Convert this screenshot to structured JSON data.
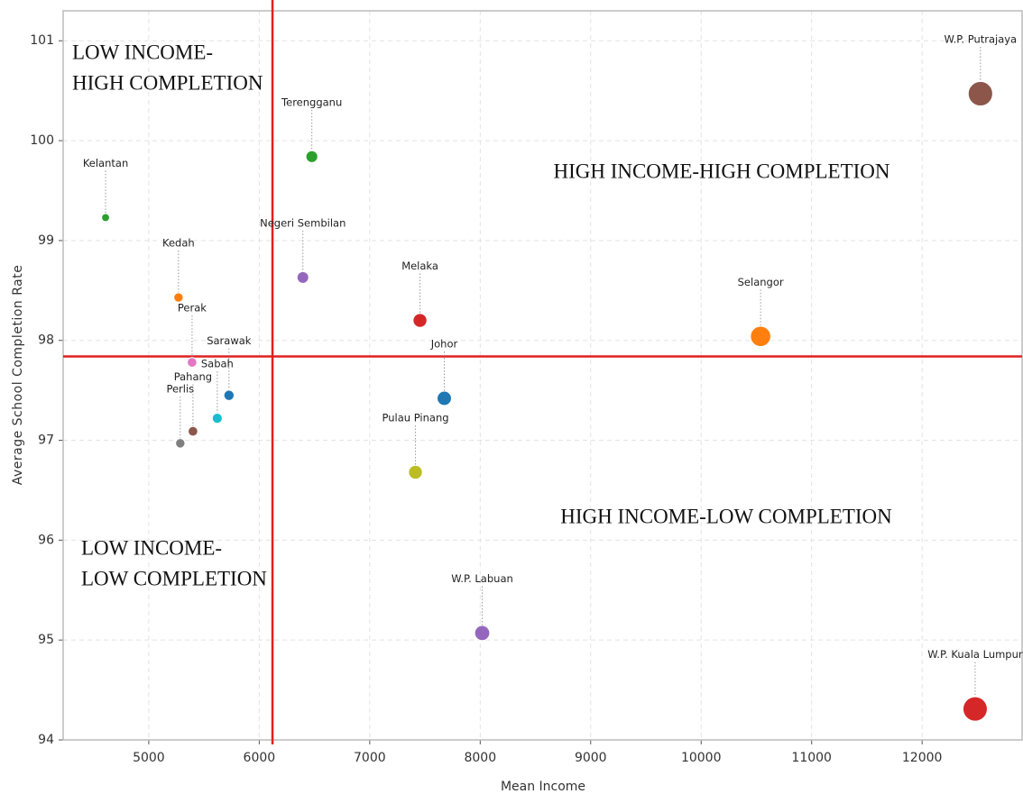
{
  "chart_data": {
    "type": "scatter",
    "x_label": "Mean Income",
    "y_label": "Average School Completion Rate",
    "points": [
      {
        "name": "Kelantan",
        "color": "#2ca02c",
        "x": 4609,
        "y": 99.23
      },
      {
        "name": "Kedah",
        "color": "#ff7f0e",
        "x": 5269,
        "y": 98.43
      },
      {
        "name": "Perak",
        "color": "#e377c2",
        "x": 5392,
        "y": 97.78
      },
      {
        "name": "Sarawak",
        "color": "#1f77b4",
        "x": 5726,
        "y": 97.45
      },
      {
        "name": "Sabah",
        "color": "#17becf",
        "x": 5620,
        "y": 97.22
      },
      {
        "name": "Pahang",
        "color": "#8c564b",
        "x": 5400,
        "y": 97.09
      },
      {
        "name": "Perlis",
        "color": "#7f7f7f",
        "x": 5285,
        "y": 96.97
      },
      {
        "name": "Terengganu",
        "color": "#2ca02c",
        "x": 6476,
        "y": 99.84
      },
      {
        "name": "Negeri Sembilan",
        "color": "#9467bd",
        "x": 6395,
        "y": 98.63
      },
      {
        "name": "Melaka",
        "color": "#d62728",
        "x": 7455,
        "y": 98.2
      },
      {
        "name": "Johor",
        "color": "#1f77b4",
        "x": 7675,
        "y": 97.42
      },
      {
        "name": "Pulau Pinang",
        "color": "#bcbd22",
        "x": 7414,
        "y": 96.68
      },
      {
        "name": "Selangor",
        "color": "#ff7f0e",
        "x": 10538,
        "y": 98.04
      },
      {
        "name": "W.P. Labuan",
        "color": "#9467bd",
        "x": 8018,
        "y": 95.07
      },
      {
        "name": "W.P. Kuala Lumpur",
        "color": "#d62728",
        "x": 12480,
        "y": 94.31
      },
      {
        "name": "W.P. Putrajaya",
        "color": "#8c564b",
        "x": 12528,
        "y": 100.47
      }
    ],
    "reference_lines": {
      "x": 6120,
      "y": 97.84,
      "color": "#e02020"
    },
    "quadrant_labels": {
      "top_left": [
        "LOW INCOME-",
        "HIGH COMPLETION"
      ],
      "top_right": [
        "HIGH INCOME-HIGH COMPLETION"
      ],
      "bottom_right": [
        "HIGH INCOME-LOW COMPLETION"
      ],
      "bottom_left": [
        "LOW INCOME-",
        "LOW COMPLETION"
      ]
    },
    "xlim": [
      4225,
      12905
    ],
    "ylim": [
      94,
      101.3
    ],
    "xticks": [
      5000,
      6000,
      7000,
      8000,
      9000,
      10000,
      11000,
      12000
    ],
    "yticks": [
      94,
      95,
      96,
      97,
      98,
      99,
      100,
      101
    ],
    "grid": true
  }
}
